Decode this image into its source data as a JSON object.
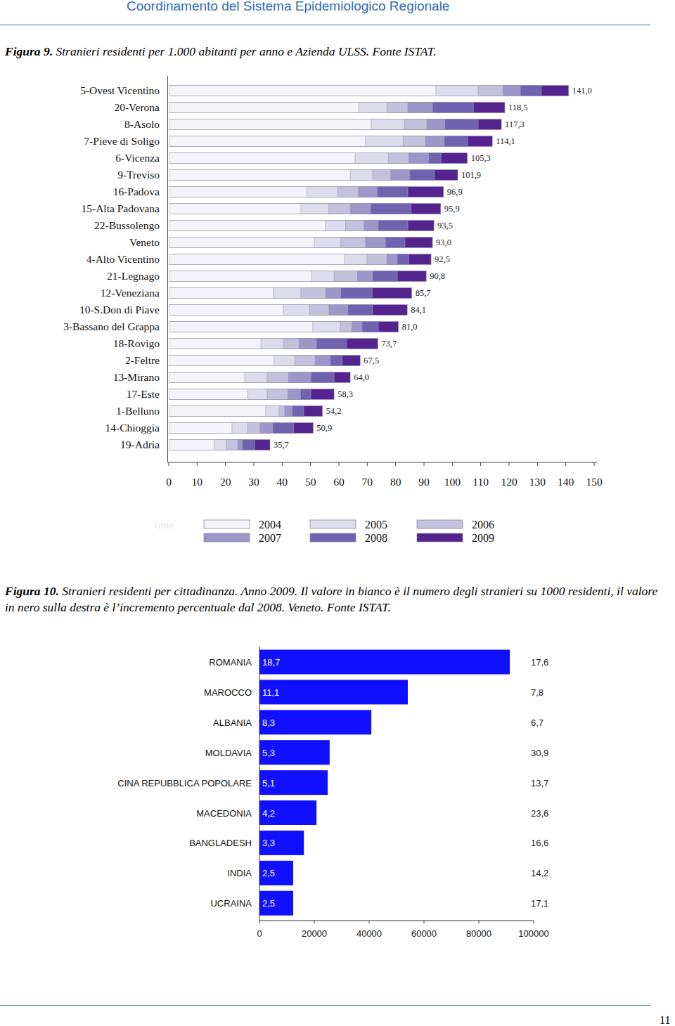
{
  "header": {
    "title": "Coordinamento del Sistema Epidemiologico Regionale"
  },
  "captions": [
    {
      "label": "Figura 9.",
      "text": "Stranieri residenti per 1.000 abitanti per anno e Azienda ULSS. Fonte ISTAT."
    },
    {
      "label": "Figura 10.",
      "text": "Stranieri residenti per cittadinanza. Anno 2009. Il valore in bianco è il numero degli stranieri su 1000 residenti, il valore in nero sulla destra è l’incremento percentuale dal 2008. Veneto. Fonte ISTAT."
    }
  ],
  "chart_data": [
    {
      "type": "bar",
      "orientation": "horizontal",
      "categories": [
        "5-Ovest Vicentino",
        "20-Verona",
        "8-Asolo",
        "7-Pieve di Soligo",
        "6-Vicenza",
        "9-Treviso",
        "16-Padova",
        "15-Alta Padovana",
        "22-Bussolengo",
        "Veneto",
        "4-Alto Vicentino",
        "21-Legnago",
        "12-Veneziana",
        "10-S.Don  di Piave",
        "3-Bassano del Grappa",
        "18-Rovigo",
        "2-Feltre",
        "13-Mirano",
        "17-Este",
        "1-Belluno",
        "14-Chioggia",
        "19-Adria"
      ],
      "series": [
        {
          "name": "2004",
          "color": "#f4f3f9",
          "values": [
            94.2,
            67.0,
            71.4,
            69.4,
            65.7,
            64.0,
            48.8,
            46.6,
            55.3,
            51.3,
            62.0,
            50.3,
            36.9,
            40.4,
            50.8,
            32.5,
            37.2,
            26.8,
            27.9,
            34.2,
            22.3,
            16.1
          ]
        },
        {
          "name": "2005",
          "color": "#dddcec",
          "values": [
            109.1,
            76.9,
            83.1,
            82.6,
            77.4,
            71.9,
            59.5,
            56.5,
            62.3,
            60.7,
            69.9,
            58.3,
            46.6,
            49.6,
            60.5,
            40.4,
            44.4,
            34.7,
            34.7,
            38.9,
            27.8,
            20.3
          ]
        },
        {
          "name": "2006",
          "color": "#c3c1dc",
          "values": [
            117.8,
            84.3,
            91.0,
            90.5,
            84.6,
            78.3,
            66.9,
            64.0,
            68.9,
            69.4,
            76.9,
            66.5,
            55.3,
            56.5,
            64.5,
            45.9,
            51.6,
            42.2,
            42.0,
            40.9,
            32.2,
            24.3
          ]
        },
        {
          "name": "2007",
          "color": "#9c96c9",
          "values": [
            124.0,
            93.0,
            97.4,
            97.2,
            91.7,
            85.0,
            73.6,
            71.2,
            73.9,
            76.4,
            80.6,
            71.9,
            60.7,
            63.2,
            68.2,
            52.1,
            57.0,
            50.1,
            46.5,
            43.6,
            36.7,
            26.0
          ]
        },
        {
          "name": "2008",
          "color": "#6f62b0",
          "values": [
            131.4,
            107.4,
            109.1,
            105.4,
            96.0,
            93.7,
            84.3,
            85.5,
            84.3,
            83.3,
            84.6,
            80.6,
            71.7,
            71.9,
            73.9,
            62.7,
            61.2,
            58.3,
            50.1,
            47.6,
            44.1,
            30.3
          ]
        },
        {
          "name": "2009",
          "color": "#54238e",
          "values": [
            141.0,
            118.5,
            117.3,
            114.1,
            105.3,
            101.9,
            96.9,
            95.9,
            93.5,
            93.0,
            92.5,
            90.8,
            85.7,
            84.1,
            81.0,
            73.7,
            67.5,
            64.0,
            58.3,
            54.2,
            50.9,
            35.7
          ],
          "value_labels": [
            "141,0",
            "118,5",
            "117,3",
            "114,1",
            "105,3",
            "101,9",
            "96,9",
            "95,9",
            "93,5",
            "93,0",
            "92,5",
            "90,8",
            "85,7",
            "84,1",
            "81,0",
            "73,7",
            "67,5",
            "64,0",
            "58,3",
            "54,2",
            "50,9",
            "35,7"
          ]
        }
      ],
      "xlim": [
        0,
        150
      ],
      "xticks": [
        0,
        10,
        20,
        30,
        40,
        50,
        60,
        70,
        80,
        90,
        100,
        110,
        120,
        130,
        140,
        150
      ],
      "data_labels": true,
      "legend": "bottom",
      "legend_title": "time"
    },
    {
      "type": "bar",
      "orientation": "horizontal",
      "categories": [
        "ROMANIA",
        "MAROCCO",
        "ALBANIA",
        "MOLDAVIA",
        "CINA REPUBBLICA POPOLARE",
        "MACEDONIA",
        "BANGLADESH",
        "INDIA",
        "UCRAINA"
      ],
      "values": [
        91300,
        54100,
        40800,
        25600,
        24900,
        20800,
        16200,
        12300,
        12300
      ],
      "color": "#1010ff",
      "xlim": [
        0,
        100000
      ],
      "xticks": [
        0,
        20000,
        40000,
        60000,
        80000,
        100000
      ],
      "per_1000_residents": [
        18.7,
        11.1,
        8.3,
        5.3,
        5.1,
        4.2,
        3.3,
        2.5,
        2.5
      ],
      "per_1000_residents_labels": [
        "18,7",
        "11,1",
        "8,3",
        "5,3",
        "5,1",
        "4,2",
        "3,3",
        "2,5",
        "2,5"
      ],
      "increase_pct_2008": [
        17.6,
        7.8,
        6.7,
        30.9,
        13.7,
        23.6,
        16.6,
        14.2,
        17.1
      ],
      "increase_pct_2008_labels": [
        "17,6",
        "7,8",
        "6,7",
        "30,9",
        "13,7",
        "23,6",
        "16,6",
        "14,2",
        "17,1"
      ]
    }
  ],
  "page_number": 11
}
